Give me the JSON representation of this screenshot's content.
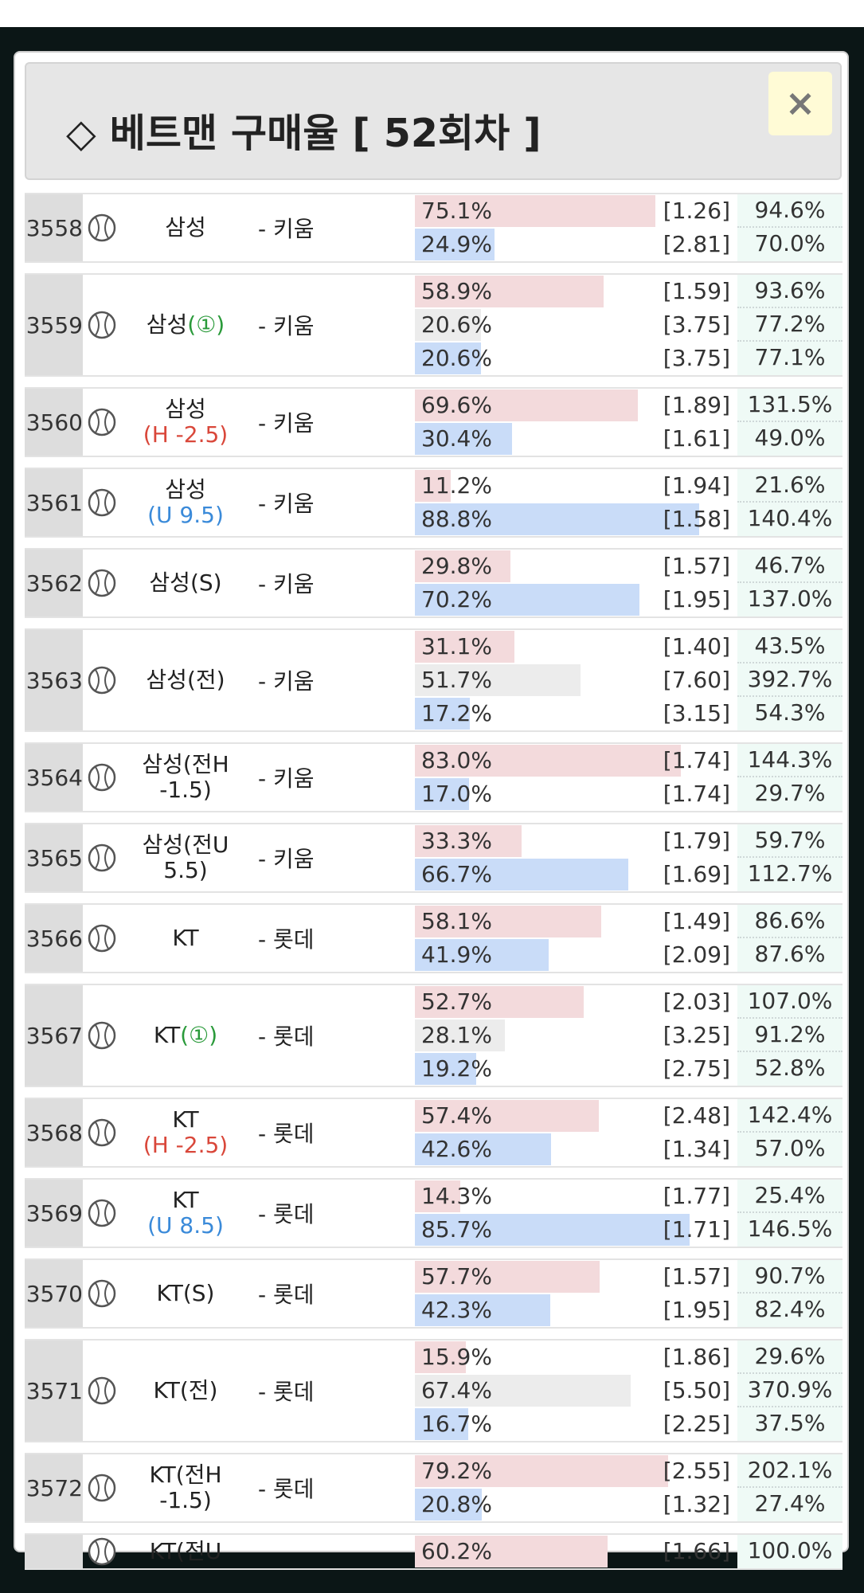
{
  "header": {
    "title": "◇ 베트맨 구매율 [ 52회차 ]",
    "close": "×"
  },
  "rows": [
    {
      "id": "3558",
      "home": "삼성",
      "away": "- 키움",
      "options": [
        {
          "pct": 75.1,
          "pct_label": "75.1%",
          "odds": "[1.26]",
          "ret": "94.6%"
        },
        {
          "pct": 24.9,
          "pct_label": "24.9%",
          "odds": "[2.81]",
          "ret": "70.0%"
        }
      ]
    },
    {
      "id": "3559",
      "home": "삼성",
      "tag": "(①)",
      "tag_color": "#2a9a3a",
      "tag_below": false,
      "away": "- 키움",
      "options": [
        {
          "pct": 58.9,
          "pct_label": "58.9%",
          "odds": "[1.59]",
          "ret": "93.6%"
        },
        {
          "pct": 20.6,
          "pct_label": "20.6%",
          "odds": "[3.75]",
          "ret": "77.2%"
        },
        {
          "pct": 20.6,
          "pct_label": "20.6%",
          "odds": "[3.75]",
          "ret": "77.1%"
        }
      ]
    },
    {
      "id": "3560",
      "home": "삼성",
      "tag": "(H -2.5)",
      "tag_color": "#d9473a",
      "tag_below": true,
      "away": "- 키움",
      "options": [
        {
          "pct": 69.6,
          "pct_label": "69.6%",
          "odds": "[1.89]",
          "ret": "131.5%"
        },
        {
          "pct": 30.4,
          "pct_label": "30.4%",
          "odds": "[1.61]",
          "ret": "49.0%"
        }
      ]
    },
    {
      "id": "3561",
      "home": "삼성",
      "tag": "(U 9.5)",
      "tag_color": "#3a8ad9",
      "tag_below": true,
      "away": "- 키움",
      "options": [
        {
          "pct": 11.2,
          "pct_label": "11.2%",
          "odds": "[1.94]",
          "ret": "21.6%"
        },
        {
          "pct": 88.8,
          "pct_label": "88.8%",
          "odds": "[1.58]",
          "ret": "140.4%"
        }
      ]
    },
    {
      "id": "3562",
      "home": "삼성(S)",
      "away": "- 키움",
      "options": [
        {
          "pct": 29.8,
          "pct_label": "29.8%",
          "odds": "[1.57]",
          "ret": "46.7%"
        },
        {
          "pct": 70.2,
          "pct_label": "70.2%",
          "odds": "[1.95]",
          "ret": "137.0%"
        }
      ]
    },
    {
      "id": "3563",
      "home": "삼성(전)",
      "away": "- 키움",
      "options": [
        {
          "pct": 31.1,
          "pct_label": "31.1%",
          "odds": "[1.40]",
          "ret": "43.5%"
        },
        {
          "pct": 51.7,
          "pct_label": "51.7%",
          "odds": "[7.60]",
          "ret": "392.7%"
        },
        {
          "pct": 17.2,
          "pct_label": "17.2%",
          "odds": "[3.15]",
          "ret": "54.3%"
        }
      ]
    },
    {
      "id": "3564",
      "home": "삼성(전H -1.5)",
      "away": "- 키움",
      "options": [
        {
          "pct": 83.0,
          "pct_label": "83.0%",
          "odds": "[1.74]",
          "ret": "144.3%"
        },
        {
          "pct": 17.0,
          "pct_label": "17.0%",
          "odds": "[1.74]",
          "ret": "29.7%"
        }
      ]
    },
    {
      "id": "3565",
      "home": "삼성(전U 5.5)",
      "away": "- 키움",
      "options": [
        {
          "pct": 33.3,
          "pct_label": "33.3%",
          "odds": "[1.79]",
          "ret": "59.7%"
        },
        {
          "pct": 66.7,
          "pct_label": "66.7%",
          "odds": "[1.69]",
          "ret": "112.7%"
        }
      ]
    },
    {
      "id": "3566",
      "home": "KT",
      "away": "- 롯데",
      "options": [
        {
          "pct": 58.1,
          "pct_label": "58.1%",
          "odds": "[1.49]",
          "ret": "86.6%"
        },
        {
          "pct": 41.9,
          "pct_label": "41.9%",
          "odds": "[2.09]",
          "ret": "87.6%"
        }
      ]
    },
    {
      "id": "3567",
      "home": "KT",
      "tag": "(①)",
      "tag_color": "#2a9a3a",
      "tag_below": false,
      "away": "- 롯데",
      "options": [
        {
          "pct": 52.7,
          "pct_label": "52.7%",
          "odds": "[2.03]",
          "ret": "107.0%"
        },
        {
          "pct": 28.1,
          "pct_label": "28.1%",
          "odds": "[3.25]",
          "ret": "91.2%"
        },
        {
          "pct": 19.2,
          "pct_label": "19.2%",
          "odds": "[2.75]",
          "ret": "52.8%"
        }
      ]
    },
    {
      "id": "3568",
      "home": "KT",
      "tag": "(H -2.5)",
      "tag_color": "#d9473a",
      "tag_below": true,
      "away": "- 롯데",
      "options": [
        {
          "pct": 57.4,
          "pct_label": "57.4%",
          "odds": "[2.48]",
          "ret": "142.4%"
        },
        {
          "pct": 42.6,
          "pct_label": "42.6%",
          "odds": "[1.34]",
          "ret": "57.0%"
        }
      ]
    },
    {
      "id": "3569",
      "home": "KT",
      "tag": "(U 8.5)",
      "tag_color": "#3a8ad9",
      "tag_below": true,
      "away": "- 롯데",
      "options": [
        {
          "pct": 14.3,
          "pct_label": "14.3%",
          "odds": "[1.77]",
          "ret": "25.4%"
        },
        {
          "pct": 85.7,
          "pct_label": "85.7%",
          "odds": "[1.71]",
          "ret": "146.5%"
        }
      ]
    },
    {
      "id": "3570",
      "home": "KT(S)",
      "away": "- 롯데",
      "options": [
        {
          "pct": 57.7,
          "pct_label": "57.7%",
          "odds": "[1.57]",
          "ret": "90.7%"
        },
        {
          "pct": 42.3,
          "pct_label": "42.3%",
          "odds": "[1.95]",
          "ret": "82.4%"
        }
      ]
    },
    {
      "id": "3571",
      "home": "KT(전)",
      "away": "- 롯데",
      "options": [
        {
          "pct": 15.9,
          "pct_label": "15.9%",
          "odds": "[1.86]",
          "ret": "29.6%"
        },
        {
          "pct": 67.4,
          "pct_label": "67.4%",
          "odds": "[5.50]",
          "ret": "370.9%"
        },
        {
          "pct": 16.7,
          "pct_label": "16.7%",
          "odds": "[2.25]",
          "ret": "37.5%"
        }
      ]
    },
    {
      "id": "3572",
      "home": "KT(전H -1.5)",
      "away": "- 롯데",
      "options": [
        {
          "pct": 79.2,
          "pct_label": "79.2%",
          "odds": "[2.55]",
          "ret": "202.1%"
        },
        {
          "pct": 20.8,
          "pct_label": "20.8%",
          "odds": "[1.32]",
          "ret": "27.4%"
        }
      ]
    },
    {
      "home": "KT(전U",
      "options": [
        {
          "pct": 60.2,
          "pct_label": "60.2%",
          "odds": "[1.66]",
          "ret": "100.0%"
        }
      ]
    }
  ]
}
